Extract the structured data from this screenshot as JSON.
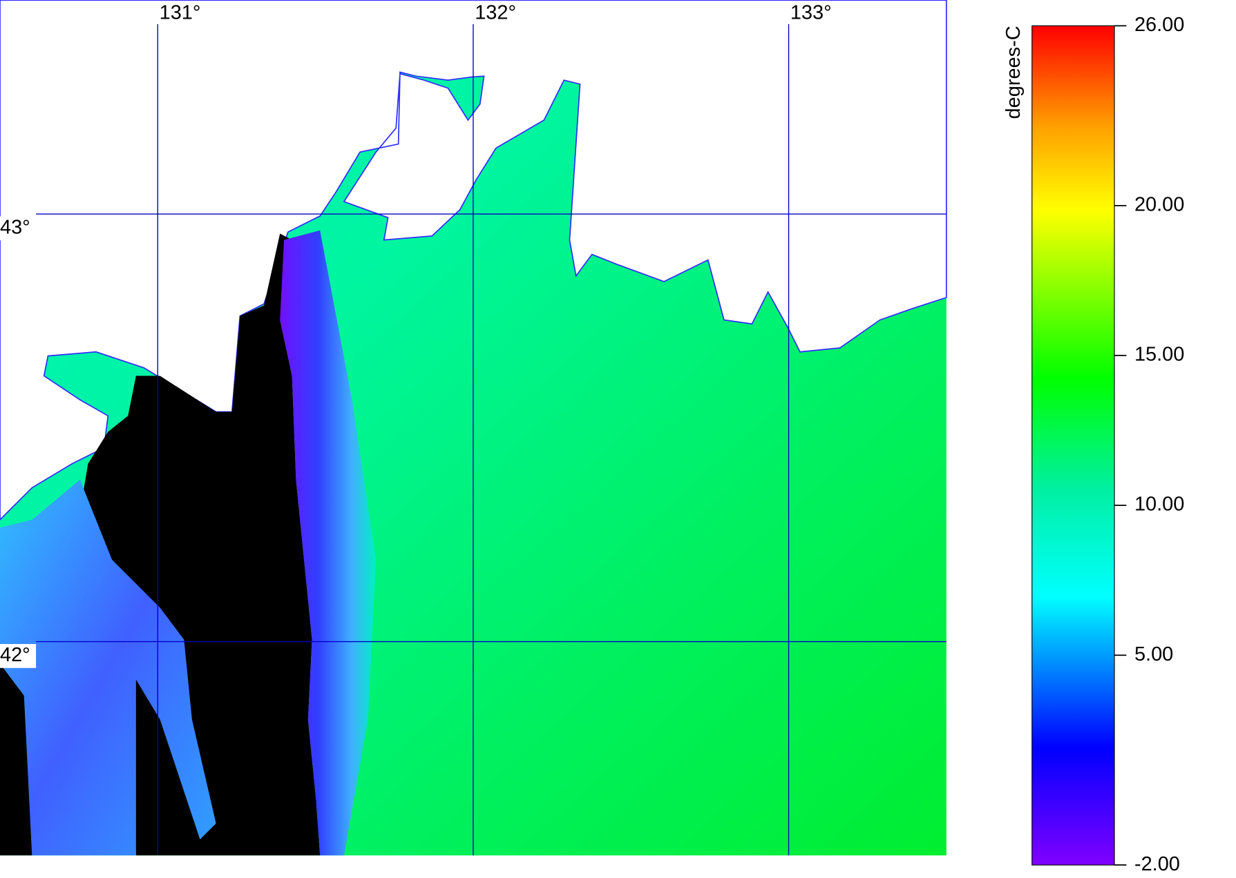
{
  "map": {
    "xlim": [
      130.5,
      133.5
    ],
    "ylim": [
      41.5,
      43.5
    ],
    "lon_ticks": [
      {
        "value": 131,
        "label": "131°"
      },
      {
        "value": 132,
        "label": "132°"
      },
      {
        "value": 133,
        "label": "133°"
      }
    ],
    "lat_ticks": [
      {
        "value": 43,
        "label": "43°"
      },
      {
        "value": 42,
        "label": "42°"
      }
    ],
    "colorbar": {
      "label": "degrees-C",
      "range": [
        -2,
        26
      ],
      "ticks": [
        {
          "value": 26,
          "label": "26.00"
        },
        {
          "value": 20,
          "label": "20.00"
        },
        {
          "value": 15,
          "label": "15.00"
        },
        {
          "value": 10,
          "label": "10.00"
        },
        {
          "value": 5,
          "label": "5.00"
        },
        {
          "value": -2,
          "label": "-2.00"
        }
      ]
    }
  }
}
